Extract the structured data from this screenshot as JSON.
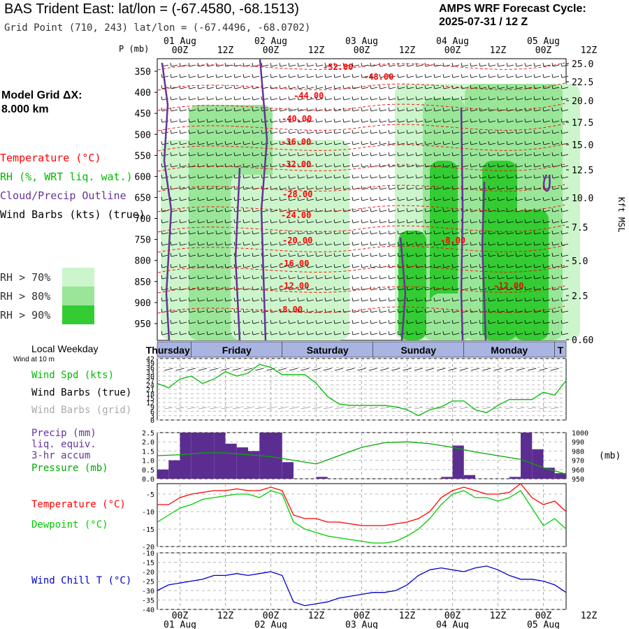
{
  "header": {
    "title": "BAS Trident East:  lat/lon = (-67.4580, -68.1513)",
    "subtitle": "Grid Point (710, 243) lat/lon = (-67.4496, -68.0702)",
    "cycle_line1": "AMPS WRF Forecast Cycle:",
    "cycle_line2": "2025-07-31 / 12  Z"
  },
  "model_grid": {
    "line1": "Model Grid ΔX:",
    "line2": " 8.000 km"
  },
  "legend": {
    "temperature": "Temperature (°C)",
    "rh": "RH (%, WRT liq. wat.)",
    "cloud": "Cloud/Precip Outline",
    "wind": "Wind Barbs (kts) (true)",
    "rh70": "RH > 70%",
    "rh80": "RH > 80%",
    "rh90": "RH > 90%"
  },
  "colors": {
    "rh70": "#ccf5cc",
    "rh80": "#99e699",
    "rh90": "#33cc33",
    "temperature": "#ff0000",
    "cloud": "#663399",
    "wind_speed": "#00bb00",
    "precip": "#5c2d91",
    "pressure": "#00aa00",
    "dewpoint": "#00cc00",
    "wind_chill": "#0000cc",
    "weekday_band": "#2a3a8c"
  },
  "axes": {
    "p_label": "P (mb)",
    "kft_label": "Kft MSL",
    "time_ticks": [
      "00Z",
      "12Z",
      "00Z",
      "12Z",
      "00Z",
      "12Z",
      "00Z",
      "12Z",
      "00Z",
      "12Z"
    ],
    "date_ticks": [
      "01 Aug",
      "02 Aug",
      "03 Aug",
      "04 Aug",
      "05 Aug"
    ],
    "mb_unit": "(mb)"
  },
  "weekday": {
    "label": "Local Weekday",
    "wind_note": "Wind at 10 m",
    "days": [
      "Thursday",
      "Friday",
      "Saturday",
      "Sunday",
      "Monday",
      "T"
    ]
  },
  "panels": {
    "wind_spd_label": "Wind Spd (kts)",
    "wind_barbs_true": "Wind Barbs (true)",
    "wind_barbs_grid": "Wind Barbs (grid)",
    "precip_l1": "Precip (mm)",
    "precip_l2": "liq. equiv.",
    "precip_l3": "3-hr accum",
    "pressure_label": "Pressure (mb)",
    "temp_label": "Temperature (°C)",
    "dew_label": "Dewpoint (°C)",
    "chill_label": "Wind Chill T (°C)"
  },
  "chart_data": [
    {
      "type": "heatmap",
      "y_ticks": [
        350,
        400,
        450,
        500,
        550,
        600,
        650,
        700,
        750,
        800,
        850,
        900,
        950
      ],
      "kft_ticks": [
        "25.0",
        "22.5",
        "20.0",
        "17.5",
        "15.0",
        "12.5",
        "10.0",
        "7.5",
        "5.0",
        "2.5",
        "0.60"
      ],
      "temperature_contours": [
        "-52.00",
        "-48.00",
        "-44.00",
        "-40.00",
        "-36.00",
        "-32.00",
        "-28.00",
        "-24.00",
        "-20.00",
        "-16.00",
        "-12.00",
        "-8.00",
        "-12.00",
        "-8.00"
      ]
    },
    {
      "type": "line",
      "name": "Wind Spd (kts)",
      "y_ticks": [
        0,
        3,
        6,
        9,
        12,
        15,
        18,
        21,
        24,
        27,
        30,
        33,
        36,
        39,
        42
      ],
      "x_hours": [
        0,
        3,
        6,
        9,
        12,
        15,
        18,
        21,
        24,
        27,
        30,
        33,
        36,
        39,
        42,
        45,
        48,
        51,
        54,
        57,
        60,
        63,
        66,
        69,
        72,
        75,
        78,
        81,
        84,
        87,
        90,
        93,
        96,
        99,
        102,
        105,
        108
      ],
      "values": [
        25,
        22,
        28,
        30,
        25,
        28,
        33,
        30,
        32,
        38,
        36,
        31,
        31,
        31,
        25,
        16,
        11,
        10,
        10,
        10,
        10,
        9,
        7,
        3,
        7,
        9,
        13,
        13,
        7,
        5,
        10,
        14,
        14,
        14,
        19,
        17,
        27
      ]
    },
    {
      "type": "bar",
      "name": "Precip (mm)",
      "y_ticks": [
        0.0,
        0.5,
        1.0,
        1.5,
        2.0,
        2.5
      ],
      "x_hours": [
        3,
        6,
        9,
        12,
        15,
        18,
        21,
        24,
        27,
        30,
        33,
        36,
        39,
        42,
        45,
        48,
        51,
        54,
        57,
        60,
        63,
        66,
        69,
        72,
        75,
        78,
        81,
        84,
        87,
        90,
        93,
        96,
        99,
        102,
        105,
        108
      ],
      "values": [
        0.5,
        1.0,
        2.5,
        2.5,
        2.5,
        2.5,
        1.9,
        1.7,
        1.5,
        2.5,
        2.5,
        0.9,
        0,
        0,
        0.1,
        0,
        0,
        0,
        0,
        0,
        0,
        0,
        0,
        0,
        0,
        0.1,
        1.8,
        0.2,
        0,
        0,
        0,
        0.1,
        2.5,
        1.6,
        0.6,
        0.3
      ]
    },
    {
      "type": "line",
      "name": "Pressure (mb)",
      "y_ticks": [
        950,
        960,
        970,
        980,
        990,
        1000
      ],
      "x_hours": [
        0,
        6,
        12,
        18,
        24,
        30,
        36,
        42,
        48,
        54,
        60,
        66,
        72,
        78,
        84,
        90,
        96,
        102,
        108
      ],
      "values": [
        975,
        976,
        978,
        978,
        976,
        974,
        970,
        966,
        975,
        984,
        989,
        990,
        988,
        984,
        979,
        975,
        971,
        962,
        955
      ]
    },
    {
      "type": "line",
      "name": "Temperature (°C)",
      "y_ticks": [
        -20,
        -15,
        -10,
        -5
      ],
      "x_hours": [
        0,
        3,
        6,
        9,
        12,
        15,
        18,
        21,
        24,
        27,
        30,
        33,
        36,
        39,
        42,
        45,
        48,
        51,
        54,
        57,
        60,
        63,
        66,
        69,
        72,
        75,
        78,
        81,
        84,
        87,
        90,
        93,
        96,
        99,
        102,
        105,
        108
      ],
      "series": [
        {
          "name": "Temperature (°C)",
          "values": [
            -8,
            -8,
            -6,
            -5,
            -4.5,
            -4,
            -4,
            -3.5,
            -4,
            -4,
            -3,
            -4,
            -11,
            -12,
            -12,
            -13,
            -13,
            -13.5,
            -14,
            -14,
            -14,
            -13.5,
            -13,
            -12,
            -10,
            -6,
            -4,
            -3,
            -4,
            -5,
            -5,
            -4.5,
            -2,
            -6,
            -8,
            -7,
            -10
          ]
        },
        {
          "name": "Dewpoint (°C)",
          "values": [
            -13,
            -11,
            -9,
            -8,
            -6.5,
            -6,
            -5.5,
            -5,
            -5,
            -6,
            -4,
            -5,
            -13,
            -15,
            -16,
            -17,
            -17.5,
            -18,
            -18.5,
            -19,
            -19,
            -18.5,
            -17,
            -15,
            -12,
            -8,
            -5,
            -4,
            -6,
            -6,
            -7,
            -6,
            -4,
            -9,
            -14,
            -12,
            -15
          ]
        }
      ]
    },
    {
      "type": "line",
      "name": "Wind Chill T (°C)",
      "y_ticks": [
        -40,
        -35,
        -30,
        -25,
        -20,
        -15,
        -10
      ],
      "x_hours": [
        0,
        3,
        6,
        9,
        12,
        15,
        18,
        21,
        24,
        27,
        30,
        33,
        36,
        39,
        42,
        45,
        48,
        51,
        54,
        57,
        60,
        63,
        66,
        69,
        72,
        75,
        78,
        81,
        84,
        87,
        90,
        93,
        96,
        99,
        102,
        105,
        108
      ],
      "values": [
        -30,
        -27,
        -26,
        -25,
        -24,
        -22,
        -22,
        -21,
        -22,
        -21,
        -20,
        -22,
        -36,
        -38,
        -37,
        -36,
        -34,
        -33,
        -32,
        -31,
        -31,
        -30,
        -27,
        -22,
        -19,
        -18,
        -19,
        -20,
        -18,
        -17,
        -19,
        -22,
        -24,
        -24,
        -25,
        -27,
        -31
      ]
    }
  ]
}
